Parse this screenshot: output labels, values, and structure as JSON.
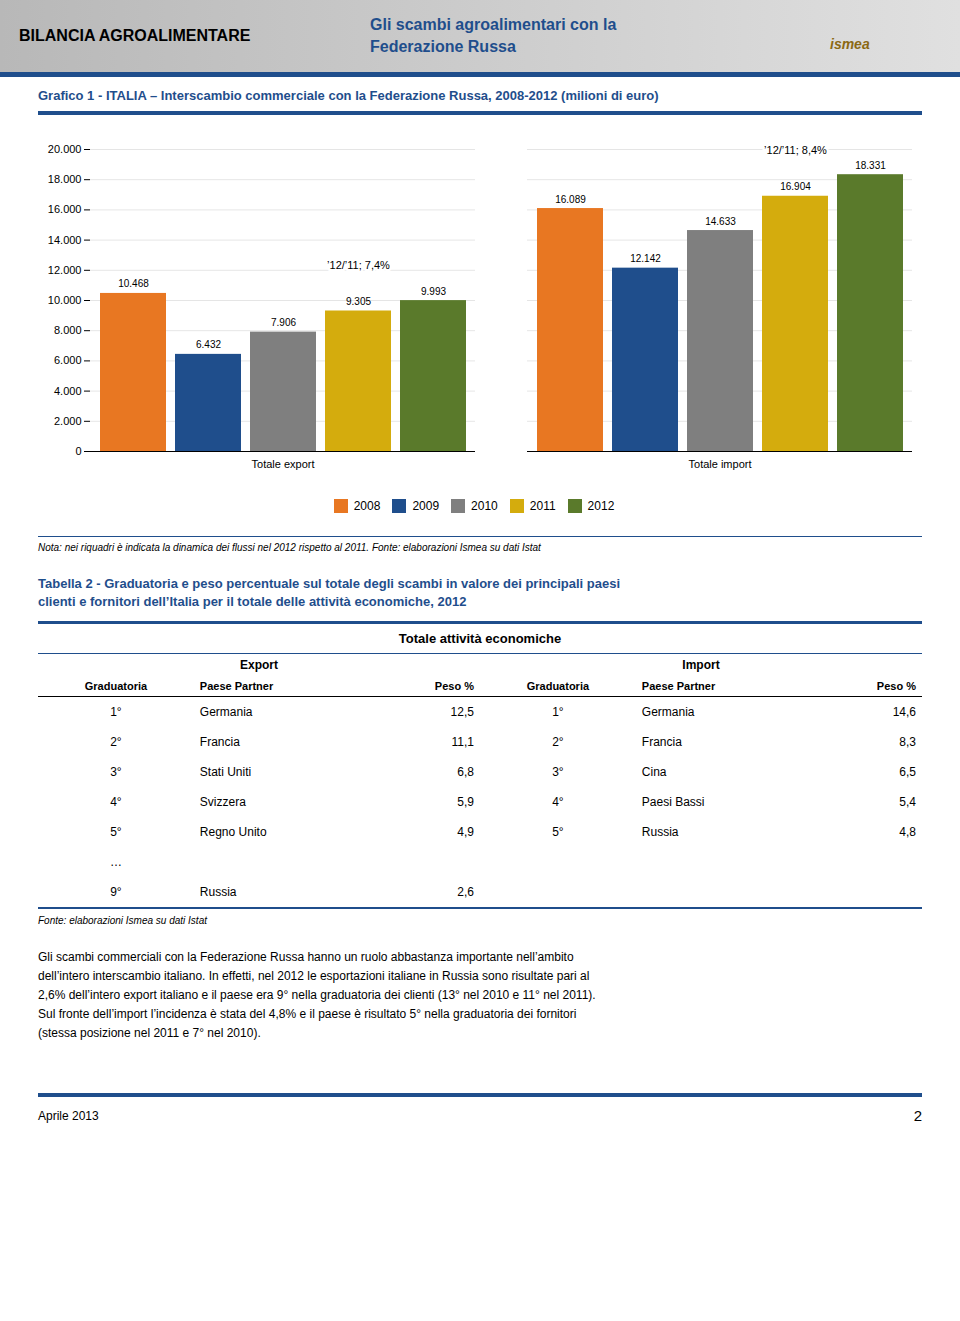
{
  "page": {
    "color": "#1f4e8c",
    "header_left": "BILANCIA AGROALIMENTARE",
    "header_center": [
      "Gli scambi agroalimentari con la",
      "Federazione Russa"
    ],
    "logo": "ismea",
    "note": "Nota: nei riquadri è indicata la dinamica dei flussi nel 2012 rispetto al 2011. Fonte: elaborazioni Ismea su dati Istat",
    "table": {
      "title": [
        "Tabella 2 - Graduatoria e peso percentuale sul totale degli scambi in valore dei principali paesi",
        "clienti e fornitori dell’Italia per il totale delle attività economiche, 2012"
      ],
      "header": "Totale attività economiche",
      "groups": [
        "Export",
        "Import"
      ],
      "columns": [
        "Graduatoria",
        "Paese Partner",
        "Peso %"
      ],
      "export_rows": [
        [
          "1°",
          "Germania",
          "12,5"
        ],
        [
          "2°",
          "Francia",
          "11,1"
        ],
        [
          "3°",
          "Stati Uniti",
          "6,8"
        ],
        [
          "4°",
          "Svizzera",
          "5,9"
        ],
        [
          "5°",
          "Regno Unito",
          "4,9"
        ],
        [
          "…"
        ],
        [
          "9°",
          "Russia",
          "2,6"
        ]
      ],
      "import_rows": [
        [
          "1°",
          "Germania",
          "14,6"
        ],
        [
          "2°",
          "Francia",
          "8,3"
        ],
        [
          "3°",
          "Cina",
          "6,5"
        ],
        [
          "4°",
          "Paesi Bassi",
          "5,4"
        ],
        [
          "5°",
          "Russia",
          "4,8"
        ]
      ],
      "source": "Fonte: elaborazioni Ismea su dati Istat"
    },
    "text": [
      "Gli scambi commerciali con la Federazione Russa hanno un ruolo abbastanza importante nell’ambito",
      "dell’intero interscambio italiano. In effetti, nel 2012 le esportazioni italiane in Russia sono risultate pari al",
      "2,6% dell’intero export italiano e il paese era 9° nella graduatoria dei clienti (13° nel 2010 e 11° nel 2011).",
      "Sul fronte dell’import l’incidenza è stata del 4,8% e il paese è risultato 5° nella graduatoria dei fornitori",
      "(stessa posizione nel 2011 e 7° nel 2010)."
    ],
    "footer": "Aprile 2013",
    "page_number": "2"
  },
  "chart_data": {
    "type": "bar",
    "title": "Grafico 1 - ITALIA – Interscambio commerciale con la Federazione Russa, 2008-2012 (milioni di euro)",
    "categories": [
      "Totale export",
      "Totale import"
    ],
    "series": [
      {
        "name": "2008",
        "color": "#e87722",
        "values": [
          10468,
          16089
        ],
        "value_labels": [
          "10.468",
          "16.089"
        ]
      },
      {
        "name": "2009",
        "color": "#1f4e8c",
        "values": [
          6432,
          12142
        ],
        "value_labels": [
          "6.432",
          "12.142"
        ]
      },
      {
        "name": "2010",
        "color": "#7f7f7f",
        "values": [
          7906,
          14633
        ],
        "value_labels": [
          "7.906",
          "14.633"
        ]
      },
      {
        "name": "2011",
        "color": "#d4ac0d",
        "values": [
          9305,
          16904
        ],
        "value_labels": [
          "9.305",
          "16.904"
        ]
      },
      {
        "name": "2012",
        "color": "#5a7a2b",
        "values": [
          9993,
          18331
        ],
        "value_labels": [
          "9.993",
          "18.331"
        ]
      }
    ],
    "ylim": [
      0,
      20000
    ],
    "yticks": [
      0,
      {
        "value": 2000,
        "label": "2.000"
      },
      {
        "value": 4000,
        "label": "4.000"
      },
      {
        "value": 6000,
        "label": "6.000"
      },
      {
        "value": 8000,
        "label": "8.000"
      },
      {
        "value": 10000,
        "label": "10.000"
      },
      {
        "value": 12000,
        "label": "12.000"
      },
      {
        "value": 14000,
        "label": "14.000"
      },
      {
        "value": 16000,
        "label": "16.000"
      },
      {
        "value": 18000,
        "label": "18.000"
      },
      {
        "value": 20000,
        "label": "20.000"
      }
    ],
    "grid": true,
    "data_labels": true,
    "legend": "bottom",
    "annotations": [
      {
        "text": "’12/’11; 7,4%",
        "category": "Totale export",
        "series": "2011"
      },
      {
        "text": "’12/’11; 8,4%",
        "category": "Totale import",
        "series": "2011"
      }
    ]
  }
}
